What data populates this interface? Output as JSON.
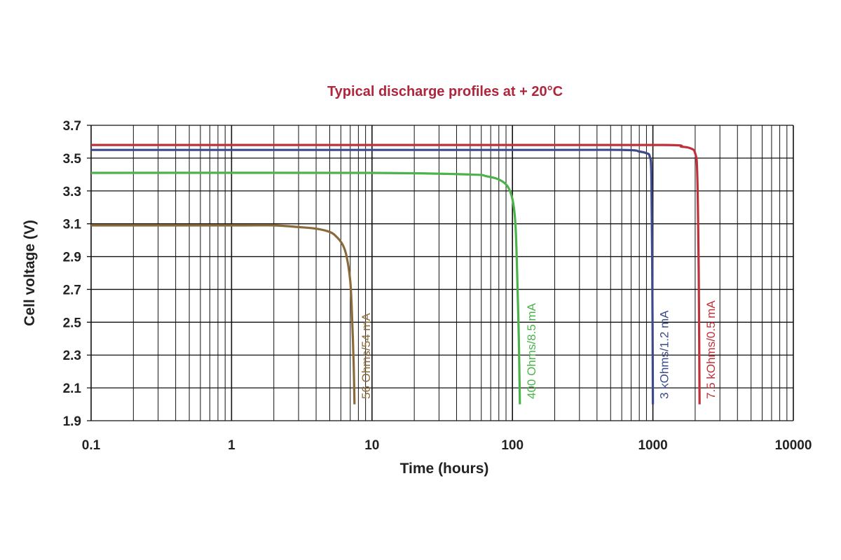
{
  "chart_data": {
    "type": "line",
    "title": "Typical discharge profiles at + 20°C",
    "title_color": "#b0243c",
    "xlabel": "Time (hours)",
    "ylabel": "Cell voltage (V)",
    "x_scale": "log",
    "xlim": [
      0.1,
      10000
    ],
    "ylim": [
      1.9,
      3.7
    ],
    "x_ticks": [
      0.1,
      1,
      10,
      100,
      1000,
      10000
    ],
    "x_tick_labels": [
      "0.1",
      "1",
      "10",
      "100",
      "1000",
      "10000"
    ],
    "y_ticks": [
      1.9,
      2.1,
      2.3,
      2.5,
      2.7,
      2.9,
      3.1,
      3.3,
      3.5,
      3.7
    ],
    "y_tick_labels": [
      "1.9",
      "2.1",
      "2.3",
      "2.5",
      "2.7",
      "2.9",
      "3.1",
      "3.3",
      "3.5",
      "3.7"
    ],
    "grid": true,
    "series": [
      {
        "name": "56 Ohms/54 mA",
        "color": "#8b6a3a",
        "x": [
          0.1,
          1,
          2,
          3,
          4,
          5,
          5.6,
          6.2,
          6.6,
          7.0,
          7.2,
          7.4,
          7.5
        ],
        "y": [
          3.09,
          3.09,
          3.09,
          3.08,
          3.07,
          3.05,
          3.02,
          2.97,
          2.9,
          2.75,
          2.55,
          2.25,
          2.0
        ]
      },
      {
        "name": "400 Ohms/8.5 mA",
        "color": "#4cb34c",
        "x": [
          0.1,
          10,
          50,
          65,
          80,
          92,
          100,
          105,
          108,
          111,
          113
        ],
        "y": [
          3.41,
          3.41,
          3.4,
          3.39,
          3.37,
          3.33,
          3.25,
          3.1,
          2.8,
          2.4,
          2.0
        ]
      },
      {
        "name": "3 kOhms/1.2 mA",
        "color": "#3c4a8c",
        "x": [
          0.1,
          100,
          600,
          800,
          900,
          950,
          975,
          990,
          1000
        ],
        "y": [
          3.55,
          3.55,
          3.55,
          3.54,
          3.53,
          3.51,
          3.4,
          2.8,
          2.0
        ]
      },
      {
        "name": "7.5 kOhms/0.5 mA",
        "color": "#c0303a",
        "x": [
          0.1,
          100,
          1200,
          1600,
          1850,
          2000,
          2070,
          2120,
          2150
        ],
        "y": [
          3.58,
          3.58,
          3.58,
          3.57,
          3.56,
          3.53,
          3.4,
          2.8,
          2.0
        ]
      }
    ]
  }
}
